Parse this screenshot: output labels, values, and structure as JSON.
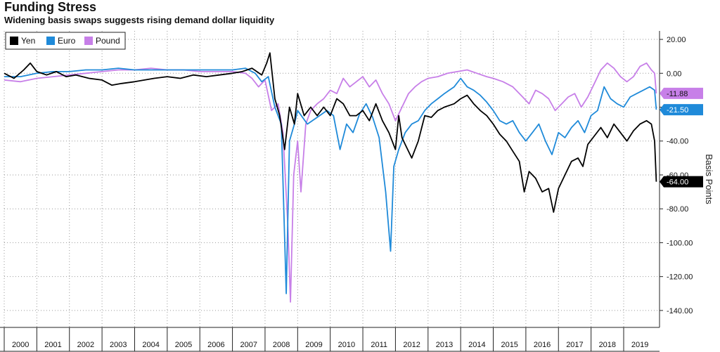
{
  "header": {
    "title": "Funding Stress",
    "subtitle": "Widening basis swaps suggests rising demand dollar liquidity"
  },
  "chart_data": {
    "type": "line",
    "title": "Funding Stress",
    "subtitle": "Widening basis swaps suggests rising demand dollar liquidity",
    "xlabel": "",
    "ylabel": "Basis Points",
    "xlim": [
      2000.0,
      2020.1
    ],
    "ylim": [
      -150,
      25
    ],
    "y_ticks": [
      20,
      0,
      -20,
      -40,
      -60,
      -80,
      -100,
      -120,
      -140
    ],
    "y_tick_labels": [
      "20.00",
      "0.00",
      "-20.00",
      "-40.00",
      "-60.00",
      "-80.00",
      "-100.00",
      "-120.00",
      "-140.00"
    ],
    "x_tick_labels": [
      "2000",
      "2001",
      "2002",
      "2003",
      "2004",
      "2005",
      "2006",
      "2007",
      "2008",
      "2009",
      "2010",
      "2011",
      "2012",
      "2013",
      "2014",
      "2015",
      "2016",
      "2017",
      "2018",
      "2019"
    ],
    "grid": true,
    "legend_position": "top-left",
    "series": [
      {
        "name": "Yen",
        "color": "#000000",
        "last_value_label": "-64.00",
        "points": [
          [
            2000.0,
            0
          ],
          [
            2000.3,
            -3
          ],
          [
            2000.6,
            2
          ],
          [
            2000.8,
            6
          ],
          [
            2001.0,
            1
          ],
          [
            2001.3,
            -1
          ],
          [
            2001.6,
            1
          ],
          [
            2001.9,
            -2
          ],
          [
            2002.2,
            -1
          ],
          [
            2002.6,
            -3
          ],
          [
            2003.0,
            -4
          ],
          [
            2003.3,
            -7
          ],
          [
            2003.6,
            -6
          ],
          [
            2004.0,
            -5
          ],
          [
            2004.3,
            -4
          ],
          [
            2004.6,
            -3
          ],
          [
            2005.0,
            -2
          ],
          [
            2005.4,
            -3
          ],
          [
            2005.8,
            -1
          ],
          [
            2006.2,
            -2
          ],
          [
            2006.6,
            -1
          ],
          [
            2007.0,
            0
          ],
          [
            2007.3,
            1
          ],
          [
            2007.6,
            3
          ],
          [
            2007.9,
            -1
          ],
          [
            2008.05,
            6
          ],
          [
            2008.15,
            12
          ],
          [
            2008.3,
            -15
          ],
          [
            2008.45,
            -25
          ],
          [
            2008.6,
            -45
          ],
          [
            2008.75,
            -20
          ],
          [
            2008.9,
            -30
          ],
          [
            2009.0,
            -12
          ],
          [
            2009.2,
            -25
          ],
          [
            2009.4,
            -20
          ],
          [
            2009.6,
            -25
          ],
          [
            2009.8,
            -20
          ],
          [
            2010.0,
            -25
          ],
          [
            2010.2,
            -15
          ],
          [
            2010.4,
            -18
          ],
          [
            2010.6,
            -25
          ],
          [
            2010.8,
            -25
          ],
          [
            2011.0,
            -22
          ],
          [
            2011.2,
            -28
          ],
          [
            2011.4,
            -18
          ],
          [
            2011.6,
            -28
          ],
          [
            2011.8,
            -35
          ],
          [
            2012.0,
            -45
          ],
          [
            2012.1,
            -25
          ],
          [
            2012.2,
            -38
          ],
          [
            2012.3,
            -42
          ],
          [
            2012.5,
            -50
          ],
          [
            2012.7,
            -40
          ],
          [
            2012.9,
            -25
          ],
          [
            2013.1,
            -26
          ],
          [
            2013.3,
            -22
          ],
          [
            2013.5,
            -20
          ],
          [
            2013.8,
            -18
          ],
          [
            2014.0,
            -15
          ],
          [
            2014.2,
            -13
          ],
          [
            2014.4,
            -18
          ],
          [
            2014.6,
            -22
          ],
          [
            2014.8,
            -25
          ],
          [
            2015.0,
            -30
          ],
          [
            2015.2,
            -36
          ],
          [
            2015.4,
            -40
          ],
          [
            2015.6,
            -46
          ],
          [
            2015.8,
            -52
          ],
          [
            2015.95,
            -70
          ],
          [
            2016.1,
            -58
          ],
          [
            2016.3,
            -62
          ],
          [
            2016.5,
            -70
          ],
          [
            2016.7,
            -68
          ],
          [
            2016.85,
            -82
          ],
          [
            2017.0,
            -68
          ],
          [
            2017.2,
            -60
          ],
          [
            2017.4,
            -52
          ],
          [
            2017.6,
            -50
          ],
          [
            2017.75,
            -55
          ],
          [
            2017.9,
            -42
          ],
          [
            2018.1,
            -37
          ],
          [
            2018.3,
            -32
          ],
          [
            2018.5,
            -38
          ],
          [
            2018.7,
            -30
          ],
          [
            2018.9,
            -35
          ],
          [
            2019.1,
            -40
          ],
          [
            2019.3,
            -34
          ],
          [
            2019.5,
            -30
          ],
          [
            2019.7,
            -28
          ],
          [
            2019.85,
            -30
          ],
          [
            2019.95,
            -40
          ],
          [
            2020.0,
            -64
          ]
        ]
      },
      {
        "name": "Euro",
        "color": "#1f8ad9",
        "last_value_label": "-21.50",
        "points": [
          [
            2000.0,
            -2
          ],
          [
            2000.5,
            -2
          ],
          [
            2001.0,
            0
          ],
          [
            2001.5,
            1
          ],
          [
            2002.0,
            1
          ],
          [
            2002.5,
            2
          ],
          [
            2003.0,
            2
          ],
          [
            2003.5,
            3
          ],
          [
            2004.0,
            2
          ],
          [
            2004.5,
            2
          ],
          [
            2005.0,
            2
          ],
          [
            2005.5,
            2
          ],
          [
            2006.0,
            2
          ],
          [
            2006.5,
            2
          ],
          [
            2007.0,
            2
          ],
          [
            2007.4,
            3
          ],
          [
            2007.7,
            0
          ],
          [
            2007.9,
            -5
          ],
          [
            2008.1,
            -2
          ],
          [
            2008.3,
            -20
          ],
          [
            2008.5,
            -30
          ],
          [
            2008.65,
            -130
          ],
          [
            2008.75,
            -40
          ],
          [
            2008.9,
            -30
          ],
          [
            2009.0,
            -22
          ],
          [
            2009.3,
            -30
          ],
          [
            2009.6,
            -26
          ],
          [
            2009.9,
            -22
          ],
          [
            2010.1,
            -25
          ],
          [
            2010.3,
            -45
          ],
          [
            2010.5,
            -30
          ],
          [
            2010.7,
            -35
          ],
          [
            2010.9,
            -24
          ],
          [
            2011.1,
            -18
          ],
          [
            2011.3,
            -26
          ],
          [
            2011.5,
            -38
          ],
          [
            2011.7,
            -70
          ],
          [
            2011.85,
            -105
          ],
          [
            2011.95,
            -55
          ],
          [
            2012.1,
            -45
          ],
          [
            2012.3,
            -35
          ],
          [
            2012.5,
            -30
          ],
          [
            2012.7,
            -28
          ],
          [
            2012.9,
            -22
          ],
          [
            2013.1,
            -18
          ],
          [
            2013.3,
            -15
          ],
          [
            2013.5,
            -12
          ],
          [
            2013.8,
            -8
          ],
          [
            2014.0,
            -3
          ],
          [
            2014.2,
            -8
          ],
          [
            2014.4,
            -10
          ],
          [
            2014.6,
            -13
          ],
          [
            2014.8,
            -17
          ],
          [
            2015.0,
            -22
          ],
          [
            2015.2,
            -28
          ],
          [
            2015.4,
            -30
          ],
          [
            2015.6,
            -28
          ],
          [
            2015.8,
            -35
          ],
          [
            2016.0,
            -40
          ],
          [
            2016.2,
            -35
          ],
          [
            2016.4,
            -30
          ],
          [
            2016.6,
            -40
          ],
          [
            2016.8,
            -48
          ],
          [
            2017.0,
            -35
          ],
          [
            2017.2,
            -38
          ],
          [
            2017.4,
            -32
          ],
          [
            2017.6,
            -28
          ],
          [
            2017.8,
            -35
          ],
          [
            2018.0,
            -25
          ],
          [
            2018.2,
            -22
          ],
          [
            2018.4,
            -8
          ],
          [
            2018.6,
            -15
          ],
          [
            2018.8,
            -18
          ],
          [
            2019.0,
            -20
          ],
          [
            2019.2,
            -14
          ],
          [
            2019.4,
            -12
          ],
          [
            2019.6,
            -10
          ],
          [
            2019.8,
            -8
          ],
          [
            2019.95,
            -10
          ],
          [
            2020.0,
            -21.5
          ]
        ]
      },
      {
        "name": "Pound",
        "color": "#c77fe8",
        "last_value_label": "-11.88",
        "points": [
          [
            2000.0,
            -4
          ],
          [
            2000.5,
            -5
          ],
          [
            2001.0,
            -3
          ],
          [
            2001.5,
            -2
          ],
          [
            2002.0,
            -1
          ],
          [
            2002.5,
            0
          ],
          [
            2003.0,
            1
          ],
          [
            2003.5,
            2
          ],
          [
            2004.0,
            2
          ],
          [
            2004.5,
            3
          ],
          [
            2005.0,
            2
          ],
          [
            2005.5,
            2
          ],
          [
            2006.0,
            1
          ],
          [
            2006.5,
            1
          ],
          [
            2007.0,
            1
          ],
          [
            2007.4,
            0
          ],
          [
            2007.6,
            -3
          ],
          [
            2007.8,
            -8
          ],
          [
            2008.0,
            -4
          ],
          [
            2008.2,
            -22
          ],
          [
            2008.4,
            -18
          ],
          [
            2008.55,
            -35
          ],
          [
            2008.7,
            -90
          ],
          [
            2008.78,
            -135
          ],
          [
            2008.88,
            -60
          ],
          [
            2009.0,
            -40
          ],
          [
            2009.1,
            -70
          ],
          [
            2009.25,
            -30
          ],
          [
            2009.4,
            -22
          ],
          [
            2009.6,
            -18
          ],
          [
            2009.8,
            -15
          ],
          [
            2010.0,
            -10
          ],
          [
            2010.2,
            -12
          ],
          [
            2010.4,
            -3
          ],
          [
            2010.6,
            -8
          ],
          [
            2010.8,
            -5
          ],
          [
            2011.0,
            -2
          ],
          [
            2011.2,
            -8
          ],
          [
            2011.4,
            -4
          ],
          [
            2011.6,
            -12
          ],
          [
            2011.8,
            -18
          ],
          [
            2012.0,
            -28
          ],
          [
            2012.2,
            -20
          ],
          [
            2012.4,
            -12
          ],
          [
            2012.6,
            -8
          ],
          [
            2012.8,
            -5
          ],
          [
            2013.0,
            -3
          ],
          [
            2013.3,
            -2
          ],
          [
            2013.6,
            0
          ],
          [
            2013.9,
            1
          ],
          [
            2014.2,
            2
          ],
          [
            2014.5,
            0
          ],
          [
            2014.8,
            -2
          ],
          [
            2015.0,
            -3
          ],
          [
            2015.3,
            -5
          ],
          [
            2015.6,
            -8
          ],
          [
            2015.9,
            -14
          ],
          [
            2016.1,
            -18
          ],
          [
            2016.3,
            -10
          ],
          [
            2016.5,
            -12
          ],
          [
            2016.7,
            -15
          ],
          [
            2016.9,
            -22
          ],
          [
            2017.1,
            -18
          ],
          [
            2017.3,
            -14
          ],
          [
            2017.5,
            -12
          ],
          [
            2017.7,
            -20
          ],
          [
            2017.9,
            -14
          ],
          [
            2018.1,
            -6
          ],
          [
            2018.3,
            2
          ],
          [
            2018.5,
            6
          ],
          [
            2018.7,
            3
          ],
          [
            2018.9,
            -2
          ],
          [
            2019.1,
            -5
          ],
          [
            2019.3,
            -2
          ],
          [
            2019.5,
            4
          ],
          [
            2019.7,
            6
          ],
          [
            2019.85,
            2
          ],
          [
            2019.95,
            0
          ],
          [
            2020.0,
            -11.88
          ]
        ]
      }
    ]
  }
}
